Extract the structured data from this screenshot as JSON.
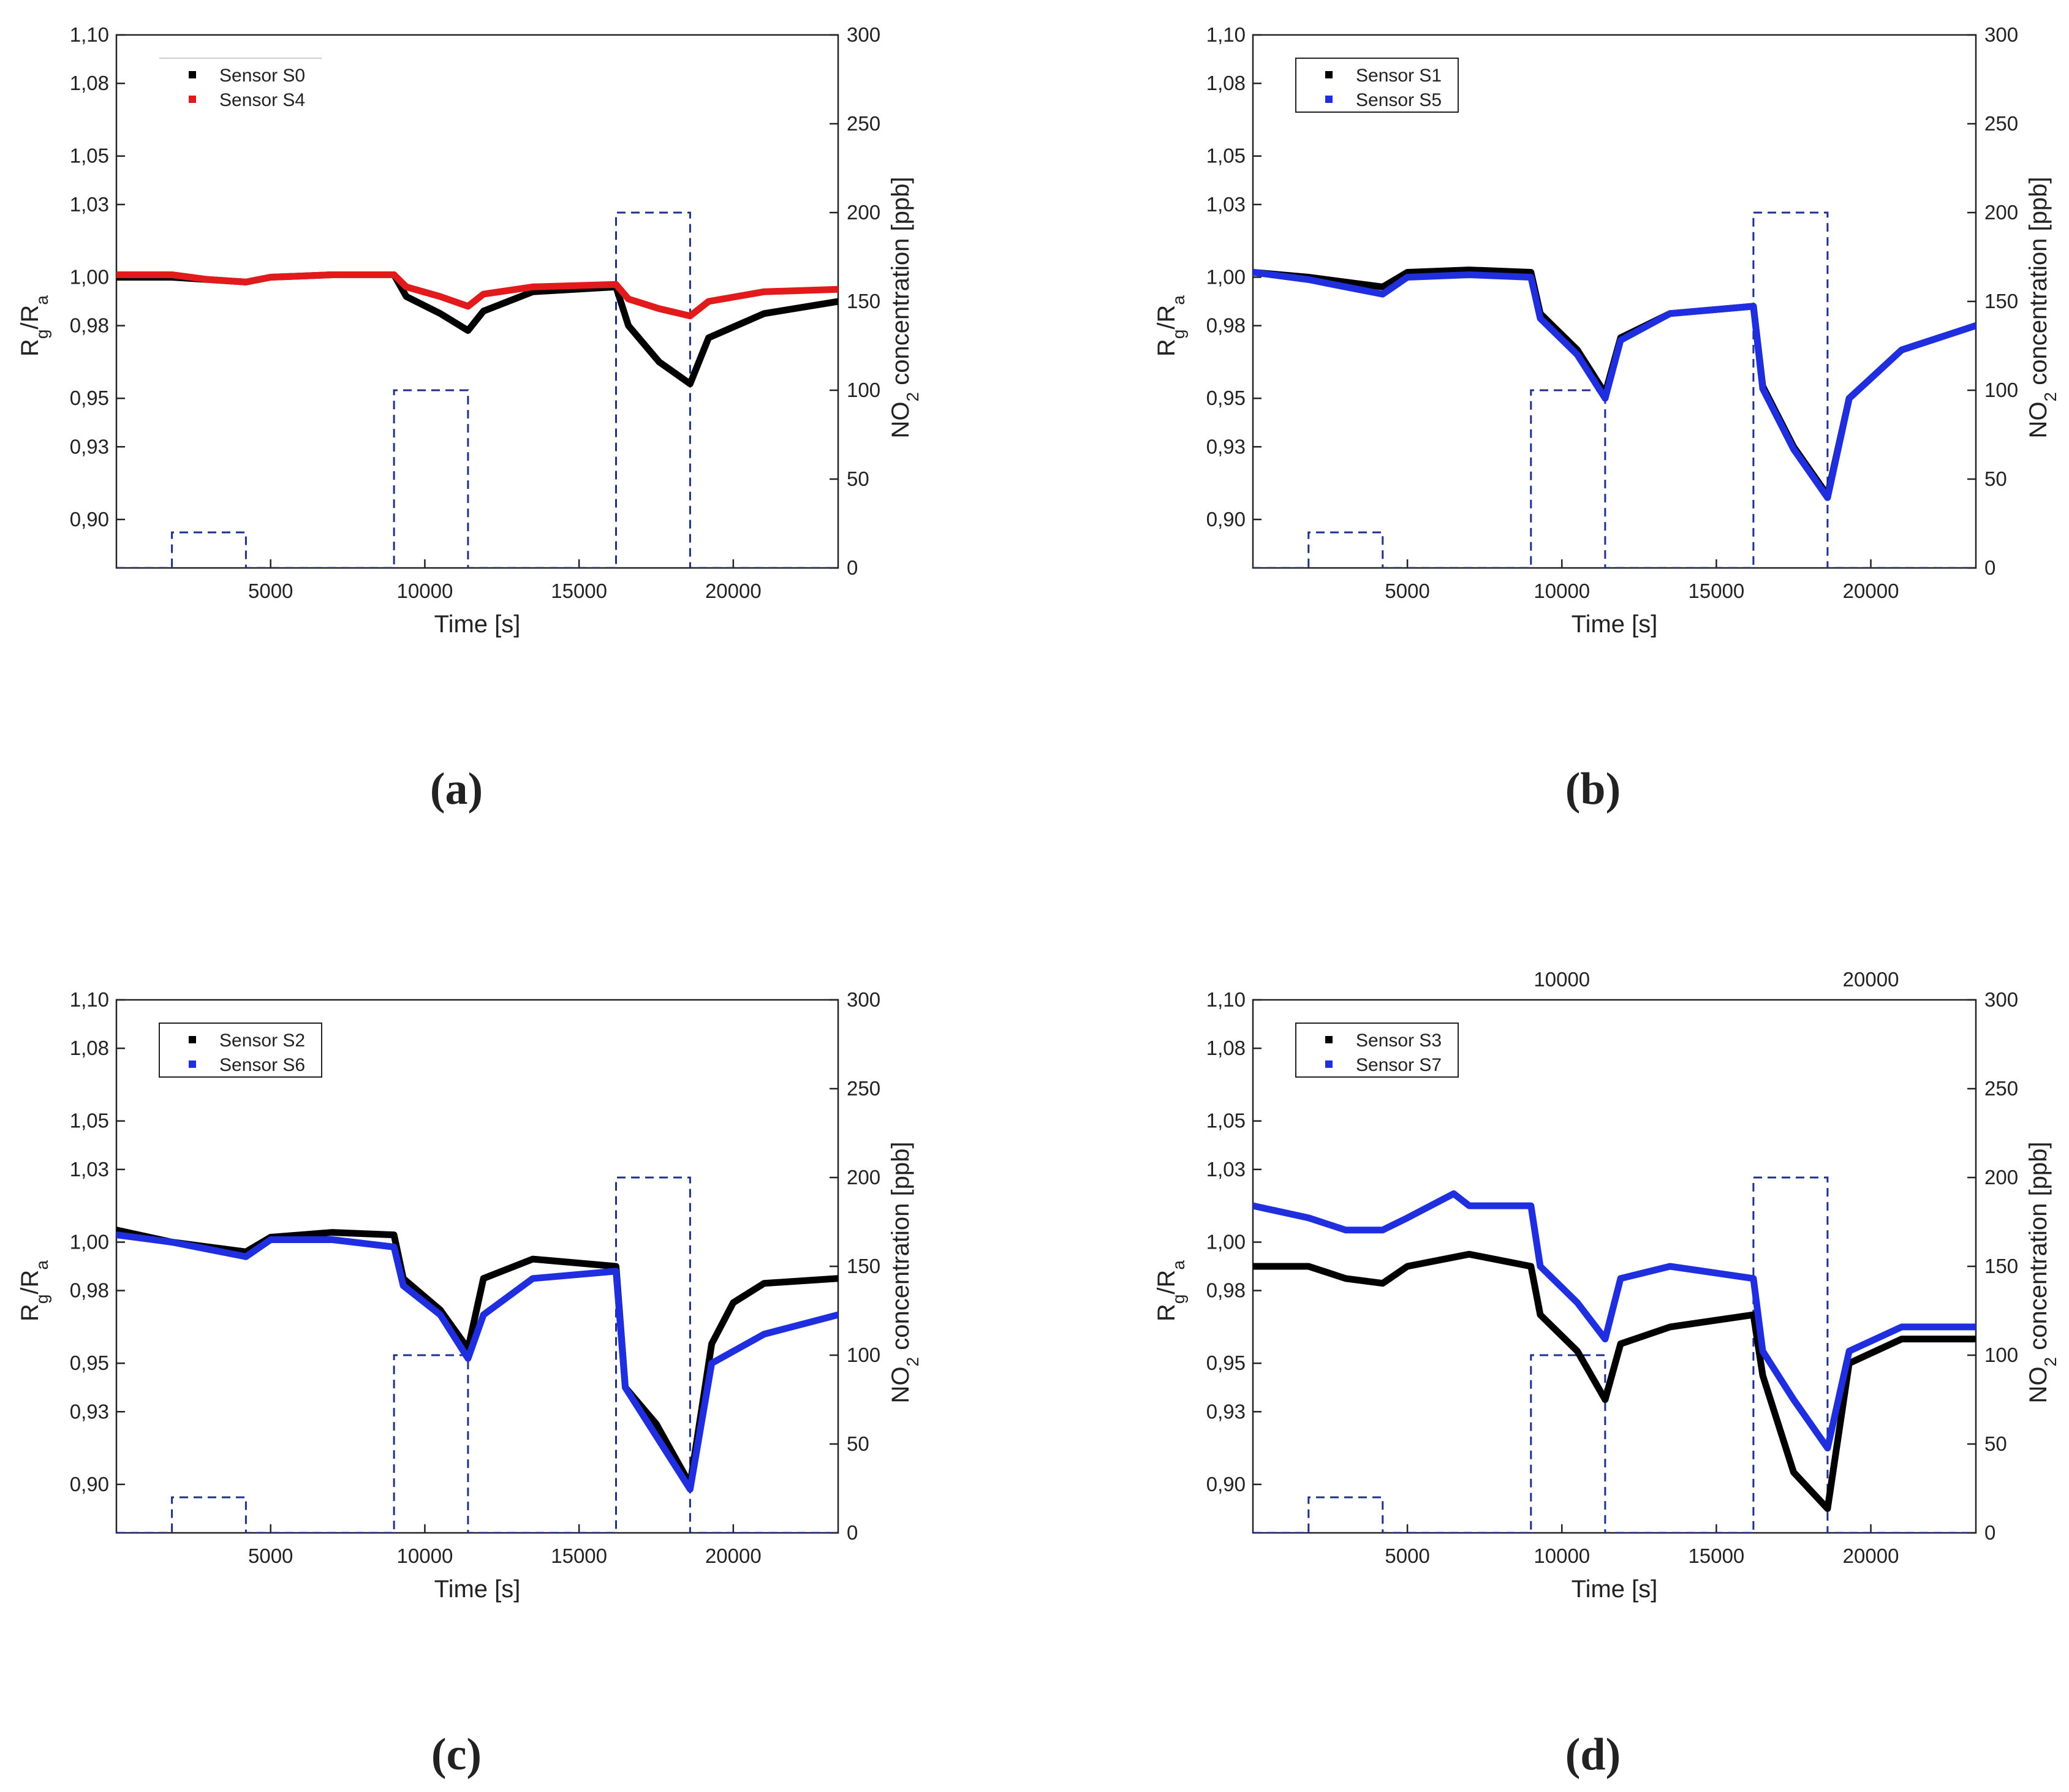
{
  "chart_data": [
    {
      "type": "line",
      "caption": "(a)",
      "xlabel": "Time [s]",
      "ylabel": "R_g/R_a",
      "ylabel_right": "NO_2 concentration [ppb]",
      "xlim": [
        0,
        23400
      ],
      "ylim": [
        0.88,
        1.1
      ],
      "y2lim": [
        0,
        300
      ],
      "xticks": [
        "5000",
        "10000",
        "15000",
        "20000"
      ],
      "yticks": [
        "1,10",
        "1,08",
        "1,05",
        "1,03",
        "1,00",
        "0,98",
        "0,95",
        "0,93",
        "0,90"
      ],
      "y2ticks": [
        "0",
        "50",
        "100",
        "150",
        "200",
        "250",
        "300"
      ],
      "top_xticks": [],
      "legend_border": false,
      "legend": [
        "Sensor S0",
        "Sensor S4"
      ],
      "series": [
        {
          "name": "Sensor S0",
          "color": "#000000",
          "x": [
            0,
            1800,
            3000,
            4200,
            5000,
            7000,
            9000,
            9400,
            10500,
            11400,
            11900,
            13500,
            16200,
            16600,
            17600,
            18600,
            19200,
            21000,
            23400
          ],
          "values": [
            1.0,
            1.0,
            0.999,
            0.998,
            1.0,
            1.001,
            1.001,
            0.992,
            0.985,
            0.978,
            0.986,
            0.994,
            0.996,
            0.98,
            0.965,
            0.956,
            0.975,
            0.985,
            0.99
          ]
        },
        {
          "name": "Sensor S4",
          "color": "#e31a1c",
          "x": [
            0,
            1800,
            3000,
            4200,
            5000,
            7000,
            9000,
            9400,
            10500,
            11400,
            11900,
            13500,
            16200,
            16600,
            17600,
            18600,
            19200,
            21000,
            23400
          ],
          "values": [
            1.001,
            1.001,
            0.999,
            0.998,
            1.0,
            1.001,
            1.001,
            0.996,
            0.992,
            0.988,
            0.993,
            0.996,
            0.997,
            0.991,
            0.987,
            0.984,
            0.99,
            0.994,
            0.995
          ]
        }
      ],
      "concentration": {
        "name": "NO2 concentration",
        "color": "#1f2f8f",
        "x": [
          0,
          1800,
          1800,
          4200,
          4200,
          9000,
          9000,
          11400,
          11400,
          16200,
          16200,
          18600,
          18600,
          23400
        ],
        "values": [
          0,
          0,
          20,
          20,
          0,
          0,
          100,
          100,
          0,
          0,
          200,
          200,
          0,
          0
        ]
      }
    },
    {
      "type": "line",
      "caption": "(b)",
      "xlabel": "Time [s]",
      "ylabel": "R_g/R_a",
      "ylabel_right": "NO_2 concentration [ppb]",
      "xlim": [
        0,
        23400
      ],
      "ylim": [
        0.88,
        1.1
      ],
      "y2lim": [
        0,
        300
      ],
      "xticks": [
        "5000",
        "10000",
        "15000",
        "20000"
      ],
      "yticks": [
        "1,10",
        "1,08",
        "1,05",
        "1,03",
        "1,00",
        "0,98",
        "0,95",
        "0,93",
        "0,90"
      ],
      "y2ticks": [
        "0",
        "50",
        "100",
        "150",
        "200",
        "250",
        "300"
      ],
      "top_xticks": [],
      "legend_border": true,
      "legend": [
        "Sensor S1",
        "Sensor S5"
      ],
      "series": [
        {
          "name": "Sensor S1",
          "color": "#000000",
          "x": [
            0,
            1800,
            3000,
            4200,
            5000,
            7000,
            9000,
            9300,
            10500,
            11400,
            11900,
            13500,
            16200,
            16500,
            17500,
            18600,
            19300,
            21000,
            23400
          ],
          "values": [
            1.002,
            1.0,
            0.998,
            0.996,
            1.002,
            1.003,
            1.002,
            0.985,
            0.97,
            0.952,
            0.975,
            0.985,
            0.988,
            0.955,
            0.93,
            0.91,
            0.95,
            0.97,
            0.98
          ]
        },
        {
          "name": "Sensor S5",
          "color": "#1f2fe0",
          "x": [
            0,
            1800,
            3000,
            4200,
            5000,
            7000,
            9000,
            9300,
            10500,
            11400,
            11900,
            13500,
            16200,
            16500,
            17500,
            18600,
            19300,
            21000,
            23400
          ],
          "values": [
            1.002,
            0.999,
            0.996,
            0.993,
            1.0,
            1.001,
            1.0,
            0.983,
            0.968,
            0.95,
            0.974,
            0.985,
            0.988,
            0.954,
            0.929,
            0.909,
            0.95,
            0.97,
            0.98
          ]
        }
      ],
      "concentration": {
        "name": "NO2 concentration",
        "color": "#1f2f8f",
        "x": [
          0,
          1800,
          1800,
          4200,
          4200,
          9000,
          9000,
          11400,
          11400,
          16200,
          16200,
          18600,
          18600,
          23400
        ],
        "values": [
          0,
          0,
          20,
          20,
          0,
          0,
          100,
          100,
          0,
          0,
          200,
          200,
          0,
          0
        ]
      }
    },
    {
      "type": "line",
      "caption": "(c)",
      "xlabel": "Time [s]",
      "ylabel": "R_g/R_a",
      "ylabel_right": "NO_2 concentration [ppb]",
      "xlim": [
        0,
        23400
      ],
      "ylim": [
        0.88,
        1.1
      ],
      "y2lim": [
        0,
        300
      ],
      "xticks": [
        "5000",
        "10000",
        "15000",
        "20000"
      ],
      "yticks": [
        "1,10",
        "1,08",
        "1,05",
        "1,03",
        "1,00",
        "0,98",
        "0,95",
        "0,93",
        "0,90"
      ],
      "y2ticks": [
        "0",
        "50",
        "100",
        "150",
        "200",
        "250",
        "300"
      ],
      "top_xticks": [],
      "legend_border": true,
      "legend": [
        "Sensor S2",
        "Sensor S6"
      ],
      "series": [
        {
          "name": "Sensor S2",
          "color": "#000000",
          "x": [
            0,
            1800,
            3000,
            4200,
            5000,
            7000,
            9000,
            9300,
            10500,
            11400,
            11900,
            13500,
            16200,
            16500,
            17500,
            18600,
            19300,
            20000,
            21000,
            23400
          ],
          "values": [
            1.005,
            1.0,
            0.998,
            0.996,
            1.002,
            1.004,
            1.003,
            0.985,
            0.972,
            0.956,
            0.985,
            0.993,
            0.99,
            0.94,
            0.925,
            0.9,
            0.958,
            0.975,
            0.983,
            0.985
          ]
        },
        {
          "name": "Sensor S6",
          "color": "#1f2fe0",
          "x": [
            0,
            1800,
            3000,
            4200,
            5000,
            7000,
            9000,
            9300,
            10500,
            11400,
            11900,
            13500,
            16200,
            16500,
            17500,
            18600,
            19300,
            21000,
            23400
          ],
          "values": [
            1.003,
            1.0,
            0.997,
            0.994,
            1.001,
            1.001,
            0.998,
            0.982,
            0.97,
            0.952,
            0.97,
            0.985,
            0.988,
            0.94,
            0.92,
            0.898,
            0.95,
            0.962,
            0.97
          ]
        }
      ],
      "concentration": {
        "name": "NO2 concentration",
        "color": "#1f2f8f",
        "x": [
          0,
          1800,
          1800,
          4200,
          4200,
          9000,
          9000,
          11400,
          11400,
          16200,
          16200,
          18600,
          18600,
          23400
        ],
        "values": [
          0,
          0,
          20,
          20,
          0,
          0,
          100,
          100,
          0,
          0,
          200,
          200,
          0,
          0
        ]
      }
    },
    {
      "type": "line",
      "caption": "(d)",
      "xlabel": "Time [s]",
      "ylabel": "R_g/R_a",
      "ylabel_right": "NO_2 concentration [ppb]",
      "xlim": [
        0,
        23400
      ],
      "ylim": [
        0.88,
        1.1
      ],
      "y2lim": [
        0,
        300
      ],
      "xticks": [
        "5000",
        "10000",
        "15000",
        "20000"
      ],
      "yticks": [
        "1,10",
        "1,08",
        "1,05",
        "1,03",
        "1,00",
        "0,98",
        "0,95",
        "0,93",
        "0,90"
      ],
      "y2ticks": [
        "0",
        "50",
        "100",
        "150",
        "200",
        "250",
        "300"
      ],
      "top_xticks": [
        "10000",
        "20000"
      ],
      "legend_border": true,
      "legend": [
        "Sensor S3",
        "Sensor S7"
      ],
      "series": [
        {
          "name": "Sensor S3",
          "color": "#000000",
          "x": [
            0,
            1800,
            3000,
            4200,
            5000,
            7000,
            9000,
            9300,
            10500,
            11400,
            11900,
            13500,
            16200,
            16500,
            17500,
            18600,
            19300,
            21000,
            23400
          ],
          "values": [
            0.99,
            0.99,
            0.985,
            0.983,
            0.99,
            0.995,
            0.99,
            0.97,
            0.955,
            0.935,
            0.958,
            0.965,
            0.97,
            0.945,
            0.905,
            0.89,
            0.95,
            0.96,
            0.96
          ]
        },
        {
          "name": "Sensor S7",
          "color": "#1f2fe0",
          "x": [
            0,
            1800,
            3000,
            4200,
            5000,
            6500,
            7000,
            9000,
            9300,
            10500,
            11400,
            11900,
            13500,
            16200,
            16500,
            17500,
            18600,
            19300,
            21000,
            23400
          ],
          "values": [
            1.015,
            1.01,
            1.005,
            1.005,
            1.01,
            1.02,
            1.015,
            1.015,
            0.99,
            0.975,
            0.96,
            0.985,
            0.99,
            0.985,
            0.955,
            0.935,
            0.915,
            0.955,
            0.965,
            0.965
          ]
        }
      ],
      "concentration": {
        "name": "NO2 concentration",
        "color": "#1f2f8f",
        "x": [
          0,
          1800,
          1800,
          4200,
          4200,
          9000,
          9000,
          11400,
          11400,
          16200,
          16200,
          18600,
          18600,
          23400
        ],
        "values": [
          0,
          0,
          20,
          20,
          0,
          0,
          100,
          100,
          0,
          0,
          200,
          200,
          0,
          0
        ]
      }
    }
  ]
}
